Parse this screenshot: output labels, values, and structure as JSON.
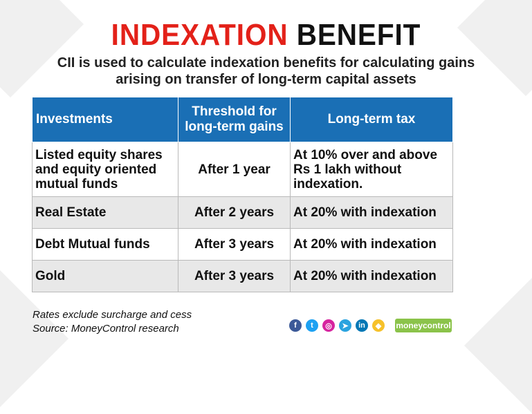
{
  "title": {
    "part1": "INDEXATION",
    "part2": "BENEFIT"
  },
  "subtitle": {
    "line1": "CII is used to calculate indexation benefits for calculating gains",
    "line2": "arising on transfer of long-term capital assets"
  },
  "table": {
    "headers": {
      "col1": "Investments",
      "col2_line1": "Threshold for",
      "col2_line2": "long-term gains",
      "col3": "Long-term tax"
    },
    "rows": [
      {
        "investment_lines": [
          "Listed equity shares",
          "and equity oriented",
          "mutual funds"
        ],
        "threshold": "After 1 year",
        "tax_lines": [
          "At 10% over and above",
          "Rs 1 lakh without",
          "indexation."
        ]
      },
      {
        "investment": "Real Estate",
        "threshold": "After 2 years",
        "tax": "At 20% with indexation"
      },
      {
        "investment": "Debt Mutual funds",
        "threshold": "After 3 years",
        "tax": "At 20% with indexation"
      },
      {
        "investment": "Gold",
        "threshold": "After 3 years",
        "tax": "At 20% with indexation"
      }
    ]
  },
  "notes": {
    "line1": "Rates exclude surcharge and cess",
    "line2": "Source: MoneyControl research"
  },
  "social_icons": [
    {
      "name": "facebook-icon",
      "glyph": "f",
      "color": "#3b5998"
    },
    {
      "name": "twitter-icon",
      "glyph": "t",
      "color": "#1da1f2"
    },
    {
      "name": "instagram-icon",
      "glyph": "◎",
      "color": "#d6249f"
    },
    {
      "name": "telegram-icon",
      "glyph": "➤",
      "color": "#2aa3df"
    },
    {
      "name": "linkedin-icon",
      "glyph": "in",
      "color": "#0077b5"
    },
    {
      "name": "koo-icon",
      "glyph": "◆",
      "color": "#f6c12a"
    }
  ],
  "logo": {
    "text": "moneycontrol",
    "color": "#8bc34a"
  },
  "colors": {
    "title_accent": "#e32119",
    "header_bg": "#1a6fb5",
    "row_alt": "#e8e8e8"
  }
}
